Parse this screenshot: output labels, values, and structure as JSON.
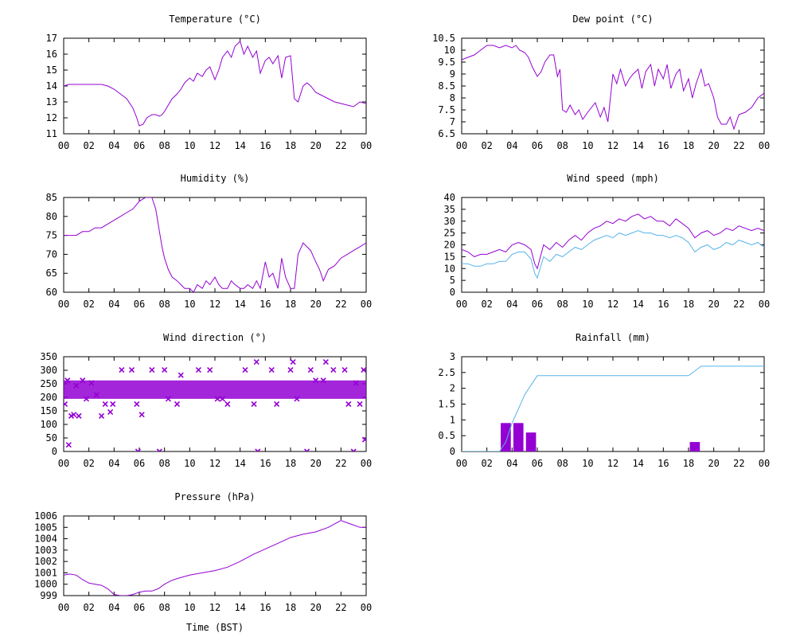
{
  "colors": {
    "primary": "#9400D3",
    "secondary": "#56B4E9",
    "axis": "#000000"
  },
  "x_label": "Time (BST)",
  "x_ticks": [
    "00",
    "02",
    "04",
    "06",
    "08",
    "10",
    "12",
    "14",
    "16",
    "18",
    "20",
    "22",
    "00"
  ],
  "chart_data": [
    {
      "id": "temperature",
      "type": "line",
      "title": "Temperature (°C)",
      "ylim": [
        11,
        17
      ],
      "yticks": [
        "11",
        "12",
        "13",
        "14",
        "15",
        "16",
        "17"
      ],
      "xlim": [
        0,
        24
      ],
      "series": [
        {
          "color": "#9400D3",
          "x": [
            0,
            0.4,
            1,
            2,
            2.5,
            3,
            3.5,
            4,
            4.5,
            5,
            5.5,
            5.8,
            6,
            6.3,
            6.6,
            7,
            7.3,
            7.6,
            7.8,
            8,
            8.3,
            8.6,
            9,
            9.3,
            9.6,
            10,
            10.3,
            10.6,
            11,
            11.3,
            11.6,
            12,
            12.3,
            12.6,
            13,
            13.3,
            13.6,
            14,
            14.3,
            14.6,
            15,
            15.3,
            15.6,
            16,
            16.3,
            16.6,
            17,
            17.3,
            17.6,
            18,
            18.3,
            18.6,
            19,
            19.3,
            19.6,
            20,
            20.5,
            21,
            21.5,
            22,
            22.5,
            23,
            23.5,
            24
          ],
          "y": [
            14.0,
            14.1,
            14.1,
            14.1,
            14.1,
            14.1,
            14.0,
            13.8,
            13.5,
            13.2,
            12.6,
            12.0,
            11.5,
            11.6,
            12.0,
            12.2,
            12.2,
            12.1,
            12.2,
            12.4,
            12.8,
            13.2,
            13.5,
            13.8,
            14.2,
            14.5,
            14.3,
            14.8,
            14.6,
            15.0,
            15.2,
            14.4,
            15.0,
            15.8,
            16.2,
            15.8,
            16.5,
            16.8,
            16.0,
            16.5,
            15.8,
            16.2,
            14.8,
            15.6,
            15.8,
            15.4,
            15.9,
            14.5,
            15.8,
            15.9,
            13.2,
            13.0,
            14.0,
            14.2,
            14.0,
            13.6,
            13.4,
            13.2,
            13.0,
            12.9,
            12.8,
            12.7,
            13.0,
            12.9
          ]
        }
      ]
    },
    {
      "id": "dew-point",
      "type": "line",
      "title": "Dew point (°C)",
      "ylim": [
        6.5,
        10.5
      ],
      "yticks": [
        "6.5",
        "7",
        "7.5",
        "8",
        "8.5",
        "9",
        "9.5",
        "10",
        "10.5"
      ],
      "xlim": [
        0,
        24
      ],
      "series": [
        {
          "color": "#9400D3",
          "x": [
            0,
            0.5,
            1,
            1.5,
            2,
            2.5,
            3,
            3.5,
            4,
            4.3,
            4.6,
            5,
            5.3,
            5.6,
            6,
            6.3,
            6.6,
            7,
            7.3,
            7.6,
            7.8,
            8,
            8.3,
            8.6,
            9,
            9.3,
            9.6,
            10,
            10.3,
            10.6,
            11,
            11.3,
            11.6,
            12,
            12.3,
            12.6,
            13,
            13.3,
            13.6,
            14,
            14.3,
            14.6,
            15,
            15.3,
            15.6,
            16,
            16.3,
            16.6,
            17,
            17.3,
            17.6,
            18,
            18.3,
            18.6,
            19,
            19.3,
            19.6,
            20,
            20.3,
            20.6,
            21,
            21.3,
            21.6,
            22,
            22.5,
            23,
            23.5,
            24
          ],
          "y": [
            9.6,
            9.7,
            9.8,
            10.0,
            10.2,
            10.2,
            10.1,
            10.2,
            10.1,
            10.2,
            10.0,
            9.9,
            9.7,
            9.3,
            8.9,
            9.1,
            9.5,
            9.8,
            9.8,
            8.9,
            9.2,
            7.5,
            7.4,
            7.7,
            7.3,
            7.5,
            7.1,
            7.4,
            7.6,
            7.8,
            7.2,
            7.6,
            7.0,
            9.0,
            8.6,
            9.2,
            8.5,
            8.8,
            9.0,
            9.2,
            8.4,
            9.1,
            9.4,
            8.5,
            9.2,
            8.8,
            9.4,
            8.4,
            9.0,
            9.2,
            8.3,
            8.8,
            8.0,
            8.6,
            9.2,
            8.5,
            8.6,
            8.0,
            7.2,
            6.9,
            6.9,
            7.2,
            6.7,
            7.3,
            7.4,
            7.6,
            8.0,
            8.2
          ]
        }
      ]
    },
    {
      "id": "humidity",
      "type": "line",
      "title": "Humidity (%)",
      "ylim": [
        60,
        85
      ],
      "yticks": [
        "60",
        "65",
        "70",
        "75",
        "80",
        "85"
      ],
      "xlim": [
        0,
        24
      ],
      "series": [
        {
          "color": "#9400D3",
          "x": [
            0,
            0.5,
            1,
            1.5,
            2,
            2.5,
            3,
            3.5,
            4,
            4.5,
            5,
            5.5,
            6,
            6.5,
            7,
            7.3,
            7.6,
            7.8,
            8,
            8.3,
            8.6,
            9,
            9.3,
            9.6,
            10,
            10.3,
            10.6,
            11,
            11.3,
            11.6,
            12,
            12.3,
            12.6,
            13,
            13.3,
            13.6,
            14,
            14.3,
            14.6,
            15,
            15.3,
            15.6,
            16,
            16.3,
            16.6,
            17,
            17.3,
            17.6,
            18,
            18.3,
            18.6,
            19,
            19.3,
            19.6,
            20,
            20.3,
            20.6,
            21,
            21.5,
            22,
            22.5,
            23,
            23.5,
            24
          ],
          "y": [
            75,
            75,
            75,
            76,
            76,
            77,
            77,
            78,
            79,
            80,
            81,
            82,
            84,
            85,
            85,
            82,
            76,
            72,
            69,
            66,
            64,
            63,
            62,
            61,
            61,
            60,
            62,
            61,
            63,
            62,
            64,
            62,
            61,
            61,
            63,
            62,
            61,
            61,
            62,
            61,
            63,
            61,
            68,
            64,
            65,
            61,
            69,
            64,
            61,
            61,
            70,
            73,
            72,
            71,
            68,
            66,
            63,
            66,
            67,
            69,
            70,
            71,
            72,
            73
          ]
        }
      ]
    },
    {
      "id": "wind-speed",
      "type": "line",
      "title": "Wind speed (mph)",
      "ylim": [
        0,
        40
      ],
      "yticks": [
        "0",
        "5",
        "10",
        "15",
        "20",
        "25",
        "30",
        "35",
        "40"
      ],
      "xlim": [
        0,
        24
      ],
      "series": [
        {
          "color": "#9400D3",
          "x": [
            0,
            0.5,
            1,
            1.5,
            2,
            2.5,
            3,
            3.5,
            4,
            4.5,
            5,
            5.5,
            5.8,
            6,
            6.5,
            7,
            7.5,
            8,
            8.5,
            9,
            9.5,
            10,
            10.5,
            11,
            11.5,
            12,
            12.5,
            13,
            13.5,
            14,
            14.5,
            15,
            15.5,
            16,
            16.5,
            17,
            17.5,
            18,
            18.5,
            19,
            19.5,
            20,
            20.5,
            21,
            21.5,
            22,
            22.5,
            23,
            23.5,
            24
          ],
          "y": [
            18,
            17,
            15,
            16,
            16,
            17,
            18,
            17,
            20,
            21,
            20,
            18,
            12,
            10,
            20,
            18,
            21,
            19,
            22,
            24,
            22,
            25,
            27,
            28,
            30,
            29,
            31,
            30,
            32,
            33,
            31,
            32,
            30,
            30,
            28,
            31,
            29,
            27,
            23,
            25,
            26,
            24,
            25,
            27,
            26,
            28,
            27,
            26,
            27,
            26
          ]
        },
        {
          "color": "#56B4E9",
          "x": [
            0,
            0.5,
            1,
            1.5,
            2,
            2.5,
            3,
            3.5,
            4,
            4.5,
            5,
            5.5,
            5.8,
            6,
            6.5,
            7,
            7.5,
            8,
            8.5,
            9,
            9.5,
            10,
            10.5,
            11,
            11.5,
            12,
            12.5,
            13,
            13.5,
            14,
            14.5,
            15,
            15.5,
            16,
            16.5,
            17,
            17.5,
            18,
            18.5,
            19,
            19.5,
            20,
            20.5,
            21,
            21.5,
            22,
            22.5,
            23,
            23.5,
            24
          ],
          "y": [
            12,
            12,
            11,
            11,
            12,
            12,
            13,
            13,
            16,
            17,
            17,
            14,
            8,
            6,
            15,
            13,
            16,
            15,
            17,
            19,
            18,
            20,
            22,
            23,
            24,
            23,
            25,
            24,
            25,
            26,
            25,
            25,
            24,
            24,
            23,
            24,
            23,
            21,
            17,
            19,
            20,
            18,
            19,
            21,
            20,
            22,
            21,
            20,
            21,
            19
          ]
        }
      ]
    },
    {
      "id": "wind-direction",
      "type": "scatter",
      "title": "Wind direction (°)",
      "ylim": [
        0,
        360
      ],
      "yticks": [
        "0",
        "50",
        "100",
        "150",
        "200",
        "250",
        "300",
        "350"
      ],
      "xlim": [
        0,
        24
      ],
      "marker": "x",
      "band": {
        "x": [
          0.0,
          24.0
        ],
        "y": [
          200,
          270
        ]
      },
      "series": [
        {
          "color": "#9400D3",
          "x": [
            0.1,
            0.3,
            0.4,
            0.6,
            0.8,
            1.0,
            1.2,
            1.5,
            1.8,
            2.2,
            2.6,
            3.0,
            3.3,
            3.7,
            3.9,
            4.6,
            5.4,
            5.8,
            5.9,
            6.2,
            7.0,
            7.6,
            8.0,
            8.3,
            9.0,
            9.3,
            10.7,
            11.6,
            12.2,
            12.6,
            13.0,
            14.4,
            15.1,
            15.3,
            15.4,
            16.5,
            16.9,
            18.0,
            18.2,
            18.5,
            19.3,
            19.6,
            20.0,
            20.6,
            20.8,
            21.4,
            22.3,
            22.6,
            23.0,
            23.2,
            23.5,
            23.8,
            23.9
          ],
          "y": [
            180,
            270,
            25,
            135,
            140,
            250,
            135,
            270,
            200,
            260,
            215,
            135,
            180,
            150,
            180,
            310,
            310,
            180,
            0,
            140,
            310,
            0,
            310,
            200,
            180,
            290,
            310,
            310,
            200,
            200,
            180,
            310,
            180,
            340,
            0,
            310,
            180,
            310,
            340,
            200,
            0,
            310,
            270,
            270,
            340,
            310,
            310,
            180,
            0,
            260,
            180,
            310,
            45
          ]
        }
      ]
    },
    {
      "id": "rainfall",
      "type": "bar",
      "title": "Rainfall (mm)",
      "ylim": [
        0,
        3
      ],
      "yticks": [
        "0",
        "0.5",
        "1",
        "1.5",
        "2",
        "2.5",
        "3"
      ],
      "xlim": [
        0,
        24
      ],
      "bar_width": 0.8,
      "bars": {
        "color": "#9400D3",
        "x": [
          3.5,
          4.5,
          5.5,
          18.5
        ],
        "values": [
          0.9,
          0.9,
          0.6,
          0.3
        ]
      },
      "series": [
        {
          "color": "#56B4E9",
          "x": [
            0,
            3.0,
            3.5,
            4.0,
            4.5,
            5.0,
            5.5,
            6.0,
            6.5,
            18.0,
            18.5,
            19.0,
            24.0
          ],
          "y": [
            0,
            0,
            0.3,
            0.9,
            1.35,
            1.8,
            2.1,
            2.4,
            2.4,
            2.4,
            2.55,
            2.7,
            2.7
          ]
        }
      ]
    },
    {
      "id": "pressure",
      "type": "line",
      "title": "Pressure (hPa)",
      "ylim": [
        999,
        1006
      ],
      "yticks": [
        "999",
        "1000",
        "1001",
        "1002",
        "1003",
        "1004",
        "1005",
        "1006"
      ],
      "xlim": [
        0,
        24
      ],
      "series": [
        {
          "color": "#9400D3",
          "x": [
            0,
            0.5,
            1,
            1.5,
            2,
            2.5,
            3,
            3.5,
            4,
            4.5,
            5,
            5.5,
            6,
            6.5,
            7,
            7.5,
            8,
            8.5,
            9,
            10,
            11,
            12,
            13,
            14,
            15,
            16,
            17,
            18,
            19,
            20,
            21,
            22,
            22.5,
            23,
            23.5,
            24
          ],
          "y": [
            1000.8,
            1000.9,
            1000.8,
            1000.4,
            1000.1,
            1000.0,
            999.9,
            999.6,
            999.1,
            999.0,
            999.0,
            999.1,
            999.3,
            999.4,
            999.4,
            999.6,
            1000.0,
            1000.3,
            1000.5,
            1000.8,
            1001.0,
            1001.2,
            1001.5,
            1002.0,
            1002.6,
            1003.1,
            1003.6,
            1004.1,
            1004.4,
            1004.6,
            1005.0,
            1005.6,
            1005.4,
            1005.2,
            1005.0,
            1005.0
          ]
        }
      ]
    }
  ]
}
